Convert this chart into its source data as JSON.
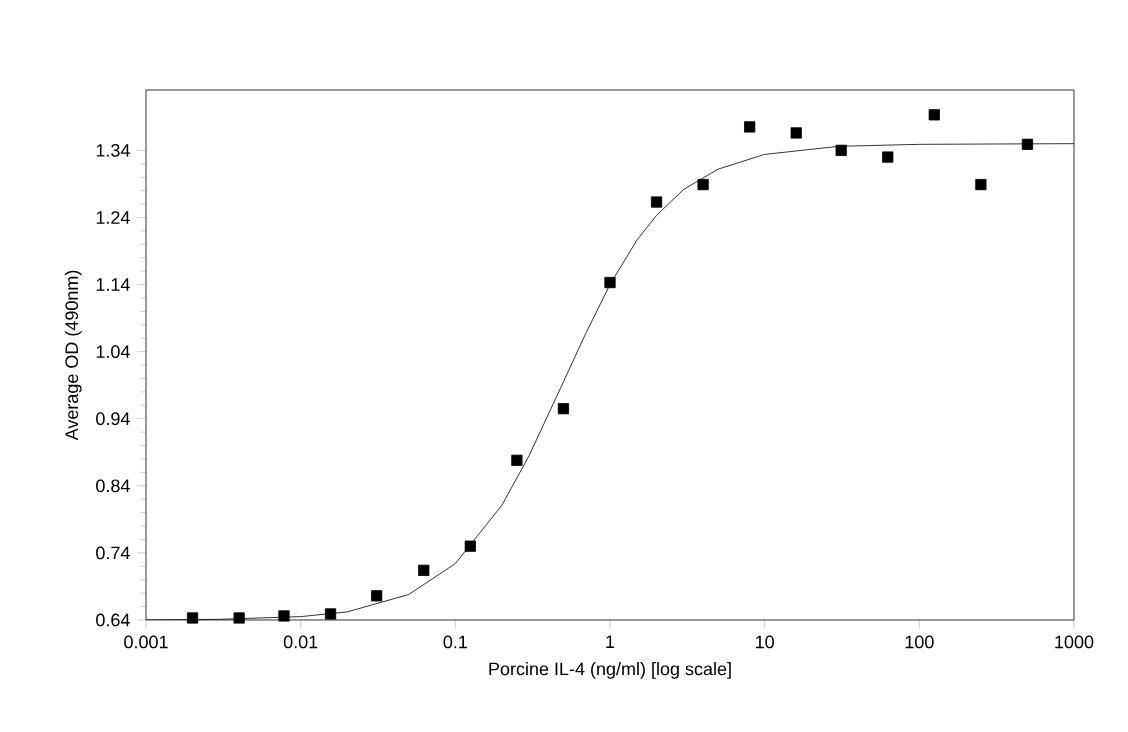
{
  "chart_data": {
    "type": "scatter",
    "xlabel": "Porcine IL-4 (ng/ml) [log scale]",
    "ylabel": "Average OD (490nm)",
    "log": "x",
    "xlim": [
      0.001,
      1000
    ],
    "xticks": [
      0.001,
      0.01,
      0.1,
      1,
      10,
      100,
      1000
    ],
    "ylim": [
      0.64,
      1.43
    ],
    "yticks": [
      0.64,
      0.74,
      0.84,
      0.94,
      1.04,
      1.14,
      1.24,
      1.34
    ],
    "grid": false,
    "series": [
      {
        "marker": "square",
        "color": "#000000",
        "x": [
          0.002,
          0.004,
          0.0078,
          0.0156,
          0.031,
          0.0625,
          0.125,
          0.25,
          0.5,
          1,
          2,
          4,
          8,
          16,
          31.25,
          62.5,
          125,
          250,
          500
        ],
        "values": [
          0.643,
          0.643,
          0.646,
          0.649,
          0.676,
          0.714,
          0.75,
          0.878,
          0.955,
          1.143,
          1.263,
          1.289,
          1.375,
          1.366,
          1.34,
          1.33,
          1.393,
          1.289,
          1.349
        ]
      },
      {
        "type": "line",
        "marker": "none",
        "line_style": "solid",
        "color": "#000000",
        "x": [
          0.001,
          0.003,
          0.01,
          0.02,
          0.05,
          0.1,
          0.2,
          0.3,
          0.5,
          0.7,
          1,
          1.5,
          2,
          3,
          5,
          10,
          30,
          100,
          1000
        ],
        "values": [
          0.64,
          0.641,
          0.645,
          0.652,
          0.678,
          0.724,
          0.811,
          0.885,
          0.995,
          1.068,
          1.14,
          1.207,
          1.243,
          1.282,
          1.312,
          1.334,
          1.346,
          1.349,
          1.35
        ]
      }
    ]
  }
}
